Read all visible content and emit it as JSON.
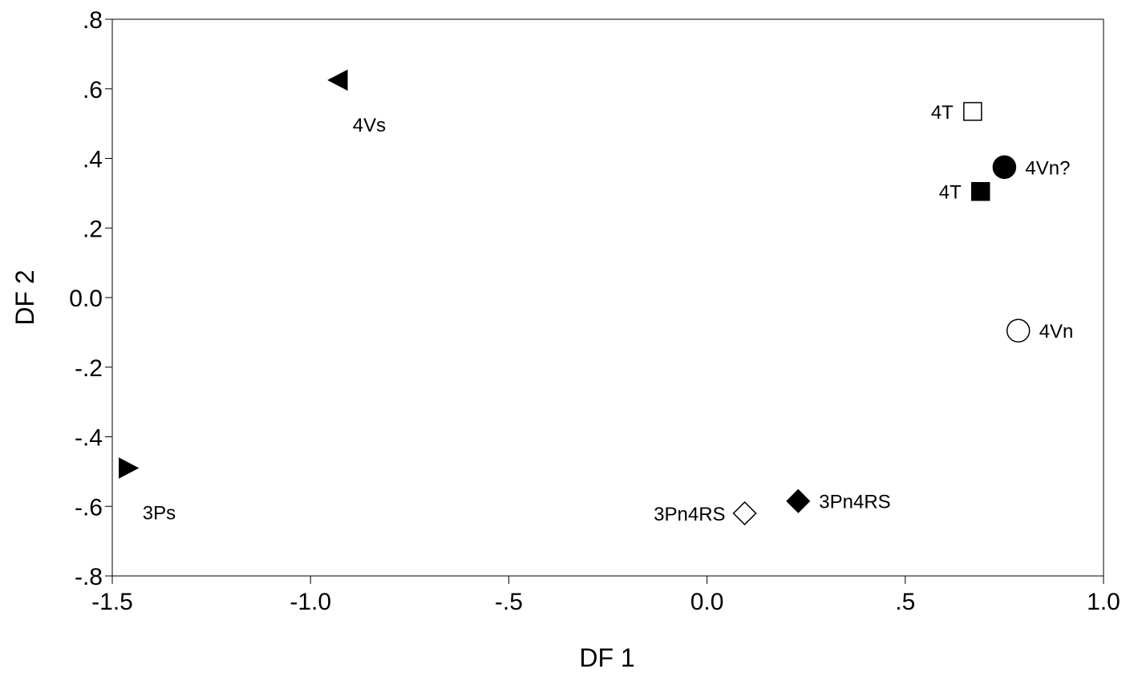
{
  "chart_data": {
    "type": "scatter",
    "title": "",
    "xlabel": "DF 1",
    "ylabel": "DF 2",
    "xlim": [
      -1.5,
      1.0
    ],
    "ylim": [
      -0.8,
      0.8
    ],
    "grid": false,
    "x_ticks": [
      {
        "value": -1.5,
        "label": "-1.5"
      },
      {
        "value": -1.0,
        "label": "-1.0"
      },
      {
        "value": -0.5,
        "label": "-.5"
      },
      {
        "value": 0.0,
        "label": "0.0"
      },
      {
        "value": 0.5,
        "label": ".5"
      },
      {
        "value": 1.0,
        "label": "1.0"
      }
    ],
    "y_ticks": [
      {
        "value": 0.8,
        "label": ".8"
      },
      {
        "value": 0.6,
        "label": ".6"
      },
      {
        "value": 0.4,
        "label": ".4"
      },
      {
        "value": 0.2,
        "label": ".2"
      },
      {
        "value": 0.0,
        "label": "0.0"
      },
      {
        "value": -0.2,
        "label": "-.2"
      },
      {
        "value": -0.4,
        "label": "-.4"
      },
      {
        "value": -0.6,
        "label": "-.6"
      },
      {
        "value": -0.8,
        "label": "-.8"
      }
    ],
    "points": [
      {
        "label": "4Vs",
        "x": -0.93,
        "y": 0.625,
        "marker": "triangle-left",
        "filled": true,
        "label_position": "below-right"
      },
      {
        "label": "3Ps",
        "x": -1.46,
        "y": -0.49,
        "marker": "triangle-right",
        "filled": true,
        "label_position": "below-right"
      },
      {
        "label": "4T",
        "x": 0.67,
        "y": 0.535,
        "marker": "square",
        "filled": false,
        "label_position": "left"
      },
      {
        "label": "4Vn?",
        "x": 0.75,
        "y": 0.375,
        "marker": "circle",
        "filled": true,
        "label_position": "right"
      },
      {
        "label": "4T",
        "x": 0.69,
        "y": 0.305,
        "marker": "square",
        "filled": true,
        "label_position": "left"
      },
      {
        "label": "4Vn",
        "x": 0.785,
        "y": -0.095,
        "marker": "circle",
        "filled": false,
        "label_position": "right"
      },
      {
        "label": "3Pn4RS",
        "x": 0.095,
        "y": -0.62,
        "marker": "diamond",
        "filled": false,
        "label_position": "left"
      },
      {
        "label": "3Pn4RS",
        "x": 0.23,
        "y": -0.585,
        "marker": "diamond",
        "filled": true,
        "label_position": "right"
      }
    ]
  }
}
